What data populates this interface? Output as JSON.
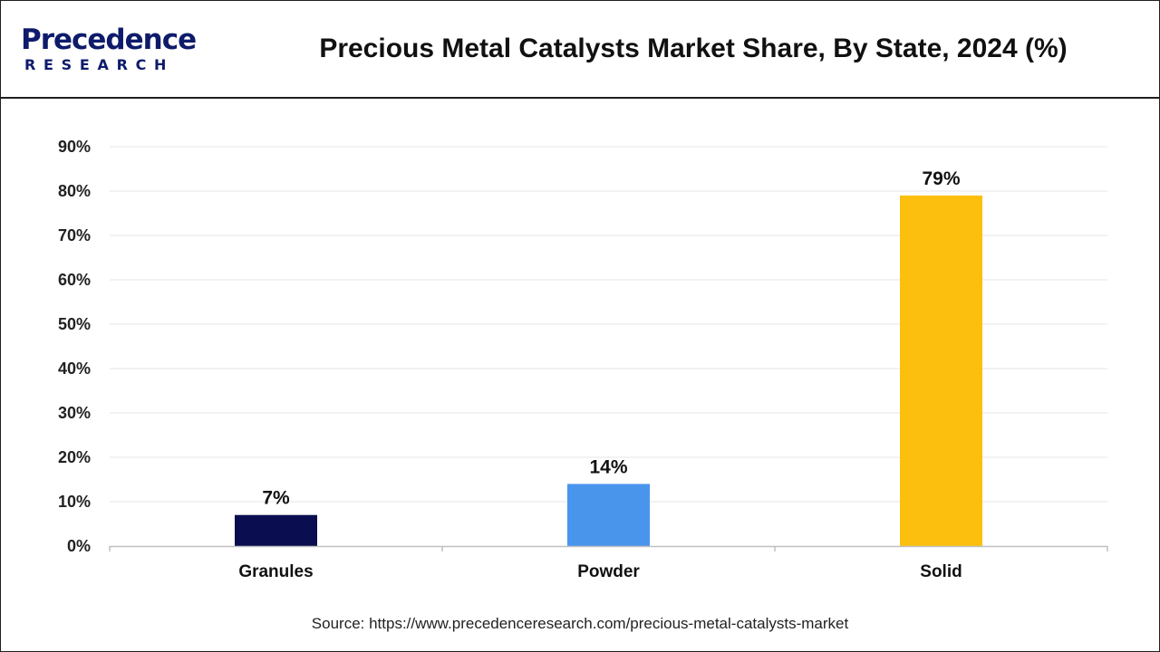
{
  "header": {
    "logo": {
      "word": "Precedence",
      "sub": "RESEARCH"
    },
    "title": "Precious Metal Catalysts Market Share, By State, 2024 (%)"
  },
  "chart_data": {
    "type": "bar",
    "categories": [
      "Granules",
      "Powder",
      "Solid"
    ],
    "values": [
      7,
      14,
      79
    ],
    "value_labels": [
      "7%",
      "14%",
      "79%"
    ],
    "colors": [
      "#0a0d4f",
      "#4a95ec",
      "#fdbf0d"
    ],
    "ylim": [
      0,
      90
    ],
    "yticks": [
      0,
      10,
      20,
      30,
      40,
      50,
      60,
      70,
      80,
      90
    ],
    "ytick_labels": [
      "0%",
      "10%",
      "20%",
      "30%",
      "40%",
      "50%",
      "60%",
      "70%",
      "80%",
      "90%"
    ],
    "grid": true,
    "title": "Precious Metal Catalysts Market Share, By State, 2024 (%)",
    "xlabel": "",
    "ylabel": ""
  },
  "footer": {
    "source": "Source: https://www.precedenceresearch.com/precious-metal-catalysts-market"
  }
}
